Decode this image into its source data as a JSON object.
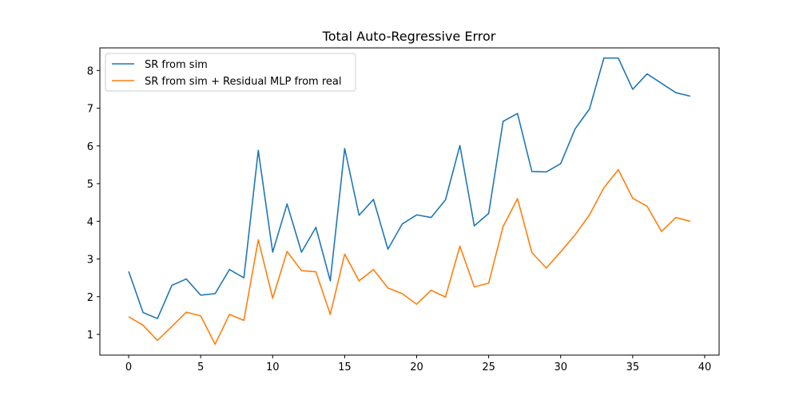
{
  "chart_data": {
    "type": "line",
    "title": "Total Auto-Regressive Error",
    "xlabel": "",
    "ylabel": "",
    "xlim": [
      -2,
      41
    ],
    "ylim": [
      0.45,
      8.6
    ],
    "xticks": [
      0,
      5,
      10,
      15,
      20,
      25,
      30,
      35,
      40
    ],
    "yticks": [
      1,
      2,
      3,
      4,
      5,
      6,
      7,
      8
    ],
    "grid": false,
    "legend_position": "upper-left",
    "x": [
      0,
      1,
      2,
      3,
      4,
      5,
      6,
      7,
      8,
      9,
      10,
      11,
      12,
      13,
      14,
      15,
      16,
      17,
      18,
      19,
      20,
      21,
      22,
      23,
      24,
      25,
      26,
      27,
      28,
      29,
      30,
      31,
      32,
      33,
      34,
      35,
      36,
      37,
      38,
      39
    ],
    "series": [
      {
        "name": "SR from sim",
        "color": "#1f77b4",
        "values": [
          2.67,
          1.58,
          1.42,
          2.3,
          2.47,
          2.04,
          2.08,
          2.72,
          2.5,
          5.88,
          3.18,
          4.46,
          3.18,
          3.84,
          2.42,
          5.93,
          4.16,
          4.58,
          3.26,
          3.93,
          4.17,
          4.1,
          4.57,
          6.01,
          3.88,
          4.21,
          6.65,
          6.86,
          5.32,
          5.31,
          5.53,
          6.45,
          6.98,
          8.33,
          8.33,
          7.5,
          7.91,
          7.66,
          7.41,
          7.32
        ]
      },
      {
        "name": "SR from sim + Residual MLP from real",
        "color": "#ff7f0e",
        "values": [
          1.47,
          1.24,
          0.84,
          1.21,
          1.59,
          1.49,
          0.74,
          1.53,
          1.37,
          3.51,
          1.96,
          3.2,
          2.69,
          2.66,
          1.53,
          3.13,
          2.42,
          2.72,
          2.23,
          2.08,
          1.8,
          2.17,
          1.99,
          3.34,
          2.26,
          2.36,
          3.86,
          4.6,
          3.17,
          2.76,
          3.19,
          3.64,
          4.17,
          4.89,
          5.37,
          4.61,
          4.4,
          3.73,
          4.1,
          4.0
        ]
      }
    ]
  }
}
